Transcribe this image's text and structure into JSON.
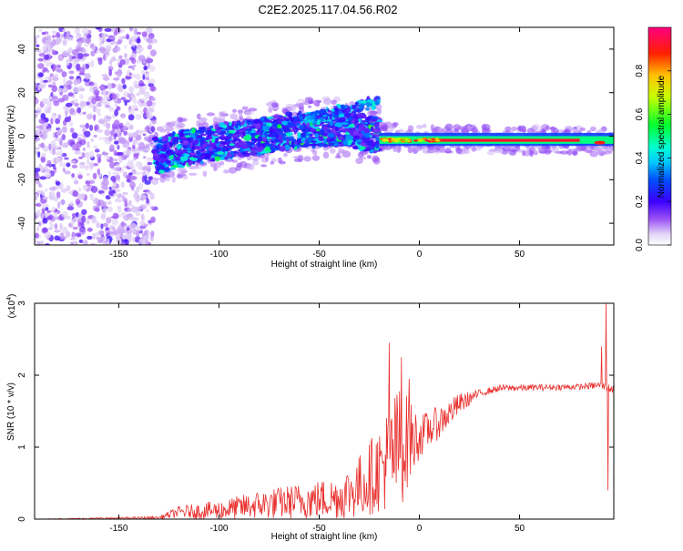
{
  "figure_title": "C2E2.2025.117.04.56.R02",
  "chart_data": [
    {
      "type": "heatmap",
      "title": "C2E2.2025.117.04.56.R02",
      "xlabel": "Height of straight line (km)",
      "ylabel": "Frequency (Hz)",
      "xlim": [
        -192,
        97
      ],
      "ylim": [
        -50,
        50
      ],
      "xticks": [
        -150,
        -100,
        -50,
        0,
        50
      ],
      "yticks": [
        -40,
        -20,
        0,
        20,
        40
      ],
      "grid": false,
      "colormap": [
        "#ffffff",
        "#d6c6f2",
        "#8a3cf0",
        "#5a00ff",
        "#0000ff",
        "#00a0ff",
        "#00ffff",
        "#00ff80",
        "#00ff00",
        "#ffff00",
        "#ff8000",
        "#ff0000",
        "#ff0080"
      ],
      "ridge": [
        {
          "x": -140,
          "y": -8
        },
        {
          "x": -130,
          "y": -9
        },
        {
          "x": -120,
          "y": -6
        },
        {
          "x": -100,
          "y": -3
        },
        {
          "x": -80,
          "y": 0
        },
        {
          "x": -60,
          "y": 3
        },
        {
          "x": -40,
          "y": 4
        },
        {
          "x": -20,
          "y": 0
        },
        {
          "x": 0,
          "y": -1
        },
        {
          "x": 50,
          "y": -2
        },
        {
          "x": 85,
          "y": -2
        },
        {
          "x": 95,
          "y": -3
        }
      ],
      "intensity_note_regions": [
        {
          "x_from": -192,
          "x_to": -132,
          "level": 0.15
        },
        {
          "x_from": -132,
          "x_to": -20,
          "level": 0.45
        },
        {
          "x_from": -20,
          "x_to": 97,
          "level": 0.95
        }
      ]
    },
    {
      "type": "colorbar",
      "label": "Normalized spectral amplitude",
      "ticks": [
        "0.0",
        "0.2",
        "0.4",
        "0.6",
        "0.8"
      ],
      "tick_values": [
        0.0,
        0.2,
        0.4,
        0.6,
        0.8
      ],
      "range": [
        0,
        1
      ]
    },
    {
      "type": "line",
      "xlabel": "Height of straight line (km)",
      "ylabel": "SNR (10 * v/v)",
      "scale_note": "(x10",
      "scale_exp": "4",
      "scale_close": ")",
      "xlim": [
        -192,
        97
      ],
      "ylim": [
        0,
        3
      ],
      "xticks": [
        -150,
        -100,
        -50,
        0,
        50
      ],
      "yticks": [
        "0",
        "1",
        "2",
        "3"
      ],
      "color": "#e8302e",
      "trend": [
        {
          "x": -192,
          "y": 0.0
        },
        {
          "x": -130,
          "y": 0.02
        },
        {
          "x": -120,
          "y": 0.1
        },
        {
          "x": -100,
          "y": 0.12
        },
        {
          "x": -80,
          "y": 0.2
        },
        {
          "x": -60,
          "y": 0.25
        },
        {
          "x": -40,
          "y": 0.3
        },
        {
          "x": -30,
          "y": 0.45
        },
        {
          "x": -20,
          "y": 0.7
        },
        {
          "x": -10,
          "y": 1.0
        },
        {
          "x": 0,
          "y": 1.15
        },
        {
          "x": 10,
          "y": 1.35
        },
        {
          "x": 20,
          "y": 1.6
        },
        {
          "x": 30,
          "y": 1.75
        },
        {
          "x": 40,
          "y": 1.82
        },
        {
          "x": 60,
          "y": 1.83
        },
        {
          "x": 80,
          "y": 1.84
        },
        {
          "x": 90,
          "y": 1.86
        },
        {
          "x": 97,
          "y": 1.8
        }
      ],
      "noise": [
        {
          "x": -192,
          "a": 0.0
        },
        {
          "x": -130,
          "a": 0.02
        },
        {
          "x": -120,
          "a": 0.08
        },
        {
          "x": -80,
          "a": 0.2
        },
        {
          "x": -40,
          "a": 0.3
        },
        {
          "x": -20,
          "a": 0.6
        },
        {
          "x": -10,
          "a": 0.9
        },
        {
          "x": 0,
          "a": 0.3
        },
        {
          "x": 20,
          "a": 0.15
        },
        {
          "x": 30,
          "a": 0.05
        },
        {
          "x": 80,
          "a": 0.04
        },
        {
          "x": 97,
          "a": 0.06
        }
      ],
      "spikes": [
        {
          "x": -15,
          "y": 2.45
        },
        {
          "x": -9,
          "y": 2.25
        },
        {
          "x": -5,
          "y": 1.95
        },
        {
          "x": 91,
          "y": 2.4
        },
        {
          "x": 93,
          "y": 3.0
        },
        {
          "x": 94,
          "y": 0.4
        }
      ]
    }
  ]
}
